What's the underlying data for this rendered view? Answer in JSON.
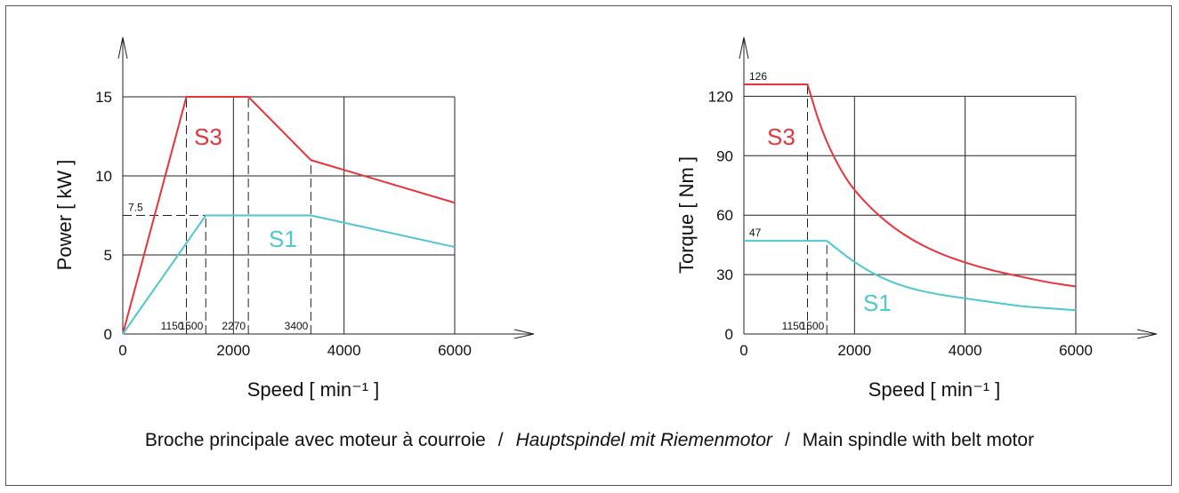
{
  "chart_data": [
    {
      "type": "line",
      "xlabel": "Speed",
      "xunit": "[ min⁻¹ ]",
      "ylabel": "Power",
      "yunit": "[ kW ]",
      "xlim": [
        0,
        6000
      ],
      "ylim": [
        0,
        15
      ],
      "x_ticks": [
        0,
        2000,
        4000,
        6000
      ],
      "y_ticks": [
        0,
        5,
        10,
        15
      ],
      "grid": true,
      "series": [
        {
          "name": "S3",
          "color": "#e8333a",
          "x": [
            0,
            1150,
            2270,
            3400,
            6000
          ],
          "y": [
            0,
            15,
            15,
            11,
            8.3
          ]
        },
        {
          "name": "S1",
          "color": "#4fc6d0",
          "x": [
            0,
            1500,
            3400,
            6000
          ],
          "y": [
            0,
            7.5,
            7.5,
            5.5
          ]
        }
      ],
      "annotations": {
        "y_marks": [
          {
            "label": "7.5",
            "value": 7.5
          }
        ],
        "x_marks": [
          {
            "label": "1150",
            "value": 1150,
            "to": 15
          },
          {
            "label": "1500",
            "value": 1500,
            "to": 7.5
          },
          {
            "label": "2270",
            "value": 2270,
            "to": 15
          },
          {
            "label": "3400",
            "value": 3400,
            "to": 11
          }
        ]
      }
    },
    {
      "type": "line",
      "xlabel": "Speed",
      "xunit": "[ min⁻¹ ]",
      "ylabel": "Torque",
      "yunit": "[ Nm ]",
      "xlim": [
        0,
        6000
      ],
      "ylim": [
        0,
        126
      ],
      "x_ticks": [
        0,
        2000,
        4000,
        6000
      ],
      "y_ticks": [
        0,
        30,
        60,
        90,
        120
      ],
      "grid": true,
      "series": [
        {
          "name": "S3",
          "color": "#e8333a",
          "x": [
            0,
            1150,
            1400,
            1700,
            2000,
            2500,
            3000,
            3500,
            4000,
            4500,
            5000,
            5500,
            6000
          ],
          "y": [
            126,
            126,
            103,
            85,
            72,
            58,
            48,
            41,
            36,
            32,
            29,
            26,
            24
          ]
        },
        {
          "name": "S1",
          "color": "#4fc6d0",
          "x": [
            0,
            1500,
            2000,
            2500,
            3000,
            3500,
            4000,
            4500,
            5000,
            5500,
            6000
          ],
          "y": [
            47,
            47,
            36,
            28,
            23,
            20,
            18,
            16,
            14,
            13,
            12
          ]
        }
      ],
      "annotations": {
        "y_marks": [
          {
            "label": "126",
            "value": 126
          },
          {
            "label": "47",
            "value": 47
          }
        ],
        "x_marks": [
          {
            "label": "1150",
            "value": 1150,
            "to": 126
          },
          {
            "label": "1500",
            "value": 1500,
            "to": 47
          }
        ]
      }
    }
  ],
  "caption": {
    "fr": "Broche principale avec moteur à courroie",
    "sep": "/",
    "de": "Hauptspindel mit Riemenmotor",
    "en": "Main spindle with belt motor"
  }
}
